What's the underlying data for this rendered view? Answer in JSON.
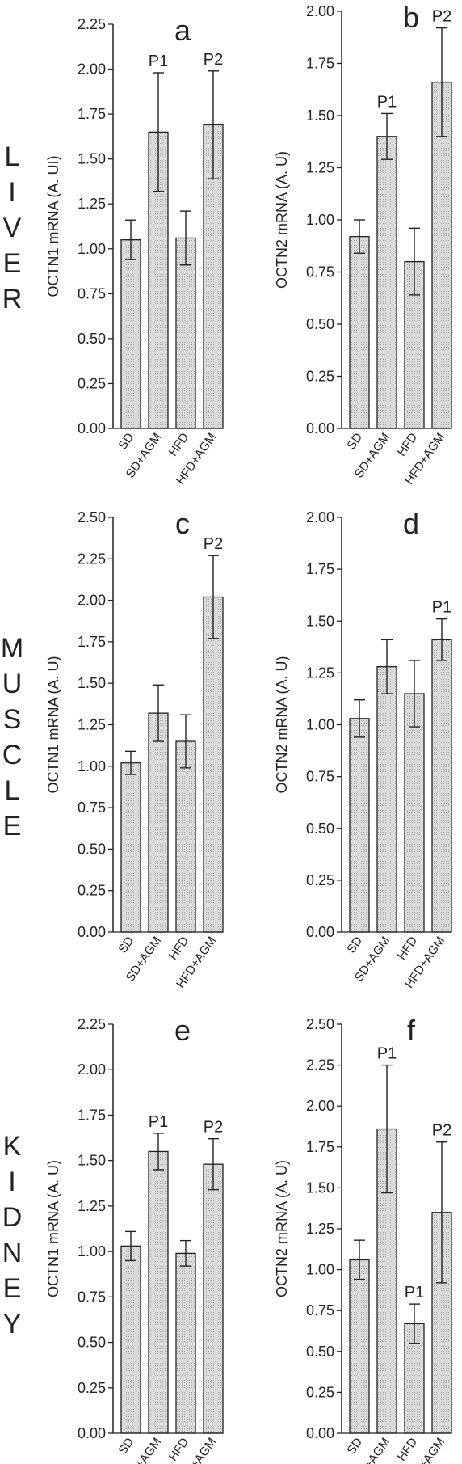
{
  "row_labels": [
    {
      "id": "liver",
      "letters": [
        "L",
        "I",
        "V",
        "E",
        "R"
      ]
    },
    {
      "id": "muscle",
      "letters": [
        "M",
        "U",
        "S",
        "C",
        "L",
        "E"
      ]
    },
    {
      "id": "kidney",
      "letters": [
        "K",
        "I",
        "D",
        "N",
        "E",
        "Y"
      ]
    }
  ],
  "chart_data": [
    {
      "type": "bar",
      "panel_letter": "a",
      "ylabel": "OCTN1 mRNA  (A. UI)",
      "categories": [
        "SD",
        "SD+AGM",
        "HFD",
        "HFD+AGM"
      ],
      "values": [
        1.05,
        1.65,
        1.06,
        1.69
      ],
      "errors": [
        0.11,
        0.33,
        0.15,
        0.3
      ],
      "annotations": [
        "",
        "P1",
        "",
        "P2"
      ],
      "ylim": [
        0,
        2.25
      ],
      "yticks_step": 0.25
    },
    {
      "type": "bar",
      "panel_letter": "b",
      "ylabel": "OCTN2 mRNA  (A. U)",
      "categories": [
        "SD",
        "SD+AGM",
        "HFD",
        "HFD+AGM"
      ],
      "values": [
        0.92,
        1.4,
        0.8,
        1.66
      ],
      "errors": [
        0.08,
        0.11,
        0.16,
        0.26
      ],
      "annotations": [
        "",
        "P1",
        "",
        "P2"
      ],
      "ylim": [
        0,
        2.0
      ],
      "yticks_step": 0.25
    },
    {
      "type": "bar",
      "panel_letter": "c",
      "ylabel": "OCTN1 mRNA (A. U)",
      "categories": [
        "SD",
        "SD+AGM",
        "HFD",
        "HFD+AGM"
      ],
      "values": [
        1.02,
        1.32,
        1.15,
        2.02
      ],
      "errors": [
        0.07,
        0.17,
        0.16,
        0.25
      ],
      "annotations": [
        "",
        "",
        "",
        "P2"
      ],
      "ylim": [
        0,
        2.5
      ],
      "yticks_step": 0.25
    },
    {
      "type": "bar",
      "panel_letter": "d",
      "ylabel": "OCTN2 mRNA (A. U)",
      "categories": [
        "SD",
        "SD+AGM",
        "HFD",
        "HFD+AGM"
      ],
      "values": [
        1.03,
        1.28,
        1.15,
        1.41
      ],
      "errors": [
        0.09,
        0.13,
        0.16,
        0.1
      ],
      "annotations": [
        "",
        "",
        "",
        "P1"
      ],
      "ylim": [
        0,
        2.0
      ],
      "yticks_step": 0.25
    },
    {
      "type": "bar",
      "panel_letter": "e",
      "ylabel": "OCTN1 mRNA (A. U)",
      "categories": [
        "SD",
        "SD+AGM",
        "HFD",
        "HFD+AGM"
      ],
      "values": [
        1.03,
        1.55,
        0.99,
        1.48
      ],
      "errors": [
        0.08,
        0.1,
        0.07,
        0.14
      ],
      "annotations": [
        "",
        "P1",
        "",
        "P2"
      ],
      "ylim": [
        0,
        2.25
      ],
      "yticks_step": 0.25
    },
    {
      "type": "bar",
      "panel_letter": "f",
      "ylabel": "OCTN2 mRNA (A. U)",
      "categories": [
        "SD",
        "SD+AGM",
        "HFD",
        "HFD+AGM"
      ],
      "values": [
        1.06,
        1.86,
        0.67,
        1.35
      ],
      "errors": [
        0.12,
        0.39,
        0.12,
        0.43
      ],
      "annotations": [
        "",
        "P1",
        "P1",
        "P2"
      ],
      "ylim": [
        0,
        2.5
      ],
      "yticks_step": 0.25
    }
  ]
}
